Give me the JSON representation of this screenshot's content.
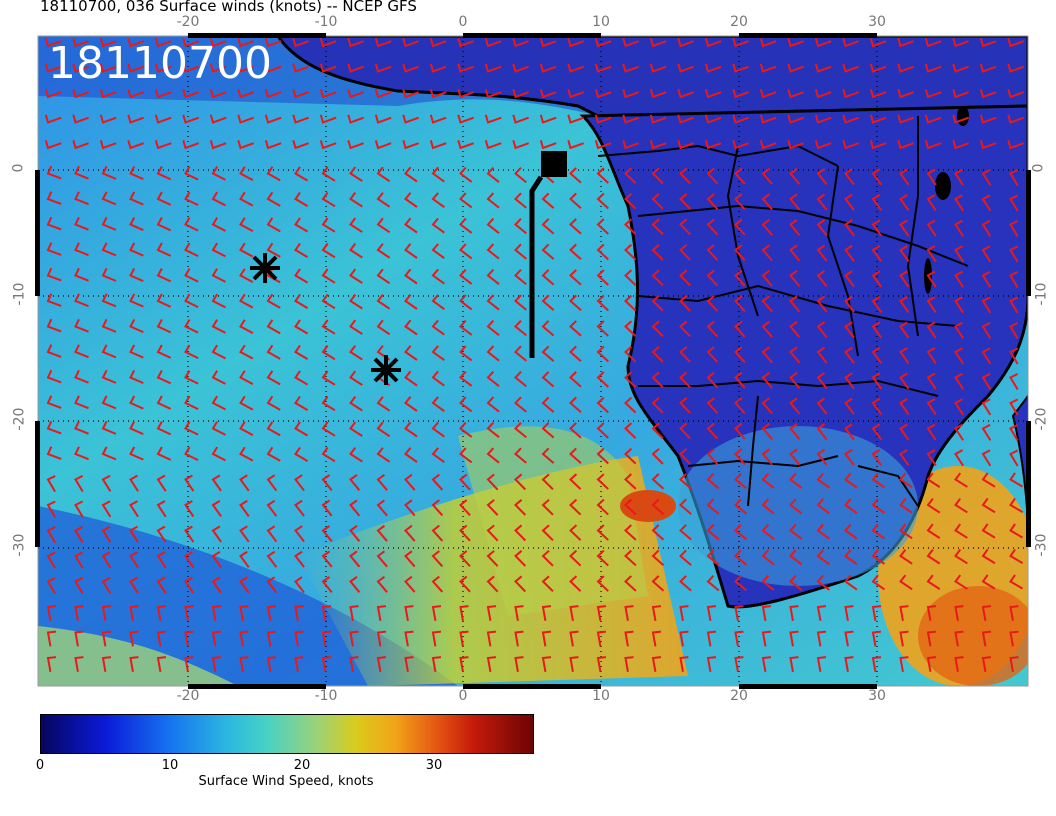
{
  "header": {
    "title": "18110700, 036 Surface winds (knots) -- NCEP GFS"
  },
  "map": {
    "date_stamp": "18110700",
    "lon_labels": [
      "-20",
      "-10",
      "0",
      "10",
      "20",
      "30"
    ],
    "lat_labels": [
      "0",
      "-10",
      "-20",
      "-30"
    ],
    "markers": [
      "asterisk",
      "asterisk",
      "filled-square"
    ],
    "colors": {
      "wind_barb": "#e8191a",
      "land": "#1e2ab4",
      "coast": "#000000"
    }
  },
  "colorbar": {
    "ticks": [
      "0",
      "10",
      "20",
      "30"
    ],
    "label": "Surface Wind Speed, knots",
    "range": [
      0,
      38
    ]
  }
}
